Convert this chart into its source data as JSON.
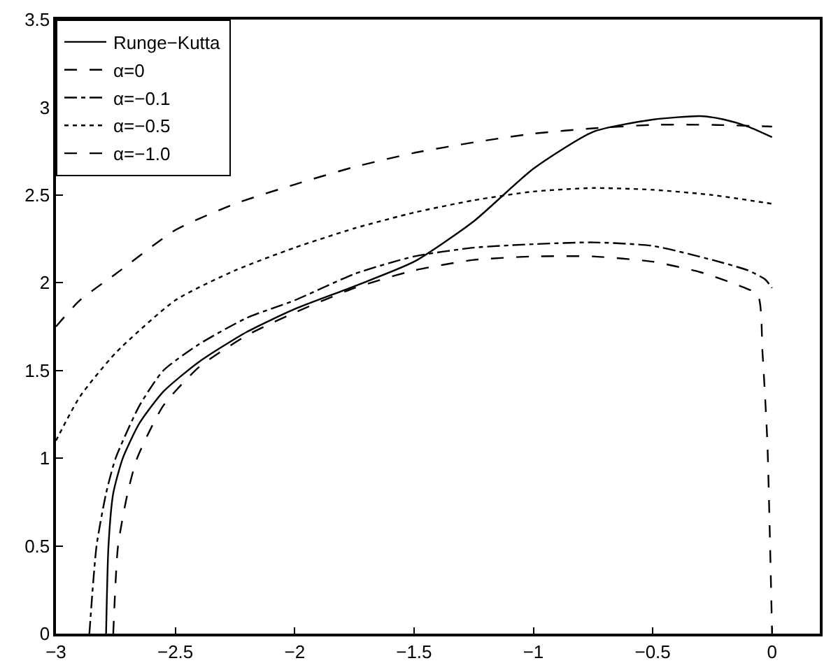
{
  "chart_data": {
    "type": "line",
    "xlim": [
      -3,
      0.2
    ],
    "ylim": [
      0,
      3.5
    ],
    "xticks": [
      -3,
      -2.5,
      -2,
      -1.5,
      -1,
      -0.5,
      0
    ],
    "yticks": [
      0,
      0.5,
      1,
      1.5,
      2,
      2.5,
      3,
      3.5
    ],
    "legend": "top left",
    "marker": "none",
    "series": [
      {
        "name": "Runge−Kutta",
        "color": "#000000",
        "line_style": "solid",
        "x": [
          -2.79,
          -2.78,
          -2.76,
          -2.72,
          -2.65,
          -2.55,
          -2.4,
          -2.2,
          -2.0,
          -1.75,
          -1.5,
          -1.25,
          -1.0,
          -0.75,
          -0.5,
          -0.3,
          -0.2,
          -0.1,
          0
        ],
        "values": [
          0,
          0.5,
          0.8,
          1.0,
          1.2,
          1.38,
          1.55,
          1.72,
          1.85,
          1.98,
          2.12,
          2.35,
          2.65,
          2.86,
          2.93,
          2.95,
          2.93,
          2.89,
          2.83
        ]
      },
      {
        "name": "α=0",
        "color": "#000000",
        "line_style": "dashed",
        "x": [
          -2.76,
          -2.74,
          -2.7,
          -2.66,
          -2.55,
          -2.4,
          -2.2,
          -2.0,
          -1.75,
          -1.5,
          -1.25,
          -1.0,
          -0.75,
          -0.5,
          -0.3,
          -0.15,
          -0.06,
          -0.04,
          -0.02,
          -0.01,
          0
        ],
        "values": [
          0,
          0.5,
          0.8,
          1.0,
          1.3,
          1.52,
          1.7,
          1.83,
          1.97,
          2.07,
          2.13,
          2.15,
          2.15,
          2.12,
          2.06,
          1.99,
          1.93,
          1.6,
          1.1,
          0.6,
          0
        ]
      },
      {
        "name": "α=−0.1",
        "color": "#000000",
        "line_style": "dashdot",
        "x": [
          -2.86,
          -2.83,
          -2.79,
          -2.75,
          -2.65,
          -2.55,
          -2.4,
          -2.2,
          -2.0,
          -1.75,
          -1.5,
          -1.25,
          -1.0,
          -0.75,
          -0.5,
          -0.25,
          -0.1,
          -0.03,
          0
        ],
        "values": [
          0,
          0.5,
          0.8,
          1.0,
          1.3,
          1.5,
          1.65,
          1.8,
          1.9,
          2.05,
          2.15,
          2.2,
          2.22,
          2.23,
          2.21,
          2.13,
          2.07,
          2.02,
          1.97
        ]
      },
      {
        "name": "α=−0.5",
        "color": "#000000",
        "line_style": "dotted",
        "x": [
          -3,
          -2.9,
          -2.75,
          -2.5,
          -2.25,
          -2.0,
          -1.75,
          -1.5,
          -1.25,
          -1.0,
          -0.75,
          -0.5,
          -0.25,
          0
        ],
        "values": [
          1.1,
          1.35,
          1.6,
          1.9,
          2.07,
          2.2,
          2.31,
          2.4,
          2.47,
          2.52,
          2.54,
          2.53,
          2.5,
          2.45
        ]
      },
      {
        "name": "α=−1.0",
        "color": "#000000",
        "line_style": "dashed",
        "x": [
          -3,
          -2.9,
          -2.75,
          -2.5,
          -2.25,
          -2.0,
          -1.75,
          -1.5,
          -1.25,
          -1.0,
          -0.75,
          -0.5,
          -0.25,
          0
        ],
        "values": [
          1.75,
          1.9,
          2.05,
          2.3,
          2.45,
          2.56,
          2.66,
          2.74,
          2.8,
          2.85,
          2.88,
          2.9,
          2.9,
          2.89
        ]
      }
    ]
  }
}
